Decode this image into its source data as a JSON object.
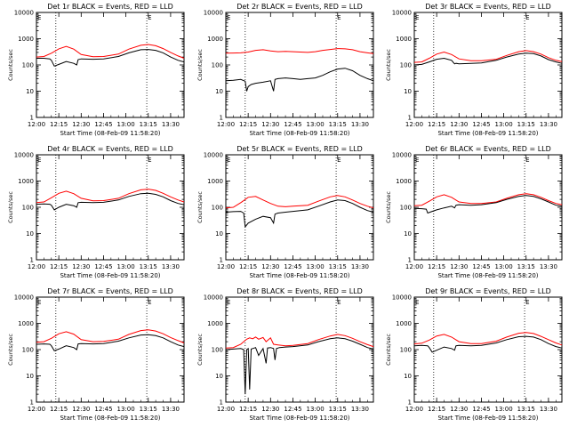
{
  "figure": {
    "xlabel": "Start Time (08-Feb-09 11:58:20)",
    "ylabel": "Counts/sec",
    "series_colors": {
      "Events": "#000000",
      "LLD": "#ff0000"
    },
    "xtick_labels": [
      "12:00",
      "12:15",
      "12:30",
      "12:45",
      "13:00",
      "13:15",
      "13:30"
    ],
    "ytick_labels": [
      "1",
      "10",
      "100",
      "1000",
      "10000"
    ],
    "marker_text": "E"
  },
  "chart_data": [
    {
      "type": "line",
      "title": "Det 1r BLACK = Events, RED = LLD",
      "xlabel": "Start Time (08-Feb-09 11:58:20)",
      "ylabel": "Counts/sec",
      "x_unit": "minutes after 12:00",
      "xlim": [
        "12:00",
        "13:39"
      ],
      "ylim": [
        1,
        10000
      ],
      "yscale": "log",
      "vlines": [
        "12:13",
        "13:14"
      ],
      "series": [
        {
          "color": "#000000",
          "x": [
            0,
            5,
            9,
            10,
            12,
            15,
            20,
            25,
            27,
            28,
            30,
            38,
            45,
            55,
            62,
            70,
            75,
            80,
            85,
            90,
            95,
            99
          ],
          "values": [
            180,
            180,
            170,
            150,
            90,
            105,
            135,
            115,
            100,
            160,
            170,
            165,
            170,
            210,
            290,
            380,
            390,
            360,
            290,
            200,
            150,
            130
          ]
        },
        {
          "color": "#ff0000",
          "x": [
            0,
            5,
            10,
            15,
            20,
            25,
            30,
            38,
            45,
            55,
            62,
            70,
            75,
            80,
            85,
            90,
            95,
            99
          ],
          "values": [
            200,
            210,
            280,
            410,
            510,
            400,
            250,
            205,
            210,
            260,
            400,
            560,
            600,
            540,
            420,
            300,
            220,
            180
          ]
        }
      ]
    },
    {
      "type": "line",
      "title": "Det 2r BLACK = Events, RED = LLD",
      "xlabel": "Start Time (08-Feb-09 11:58:20)",
      "ylabel": "Counts/sec",
      "x_unit": "minutes after 12:00",
      "xlim": [
        "12:00",
        "13:39"
      ],
      "ylim": [
        1,
        10000
      ],
      "yscale": "log",
      "vlines": [
        "12:13",
        "13:14"
      ],
      "series": [
        {
          "color": "#000000",
          "x": [
            0,
            5,
            10,
            13,
            14,
            15,
            17,
            20,
            25,
            30,
            32,
            33,
            35,
            40,
            45,
            50,
            55,
            60,
            65,
            70,
            75,
            80,
            85,
            90,
            95,
            99
          ],
          "values": [
            25,
            26,
            28,
            24,
            10,
            15,
            18,
            20,
            22,
            25,
            10,
            28,
            30,
            32,
            30,
            28,
            30,
            32,
            40,
            55,
            70,
            75,
            60,
            40,
            30,
            25
          ]
        },
        {
          "color": "#ff0000",
          "x": [
            0,
            5,
            10,
            15,
            20,
            25,
            30,
            35,
            40,
            45,
            50,
            55,
            60,
            65,
            70,
            75,
            80,
            85,
            90,
            95,
            99
          ],
          "values": [
            280,
            285,
            290,
            310,
            360,
            380,
            340,
            320,
            330,
            320,
            310,
            300,
            320,
            360,
            390,
            420,
            410,
            380,
            320,
            290,
            270
          ]
        }
      ]
    },
    {
      "type": "line",
      "title": "Det 3r BLACK = Events, RED = LLD",
      "xlabel": "Start Time (08-Feb-09 11:58:20)",
      "ylabel": "Counts/sec",
      "x_unit": "minutes after 12:00",
      "xlim": [
        "12:00",
        "13:39"
      ],
      "ylim": [
        1,
        10000
      ],
      "yscale": "log",
      "vlines": [
        "12:13",
        "13:14"
      ],
      "series": [
        {
          "color": "#000000",
          "x": [
            0,
            5,
            10,
            15,
            20,
            25,
            27,
            28,
            30,
            38,
            45,
            55,
            62,
            70,
            75,
            80,
            85,
            90,
            95,
            99
          ],
          "values": [
            100,
            105,
            130,
            165,
            180,
            150,
            110,
            115,
            110,
            115,
            120,
            150,
            200,
            260,
            280,
            270,
            220,
            160,
            130,
            115
          ]
        },
        {
          "color": "#ff0000",
          "x": [
            0,
            5,
            10,
            15,
            20,
            25,
            30,
            38,
            45,
            55,
            62,
            70,
            75,
            80,
            85,
            90,
            95,
            99
          ],
          "values": [
            125,
            130,
            180,
            260,
            310,
            250,
            170,
            145,
            145,
            165,
            230,
            320,
            350,
            320,
            260,
            190,
            150,
            135
          ]
        }
      ]
    },
    {
      "type": "line",
      "title": "Det 4r BLACK = Events, RED = LLD",
      "xlabel": "Start Time (08-Feb-09 11:58:20)",
      "ylabel": "Counts/sec",
      "x_unit": "minutes after 12:00",
      "xlim": [
        "12:00",
        "13:39"
      ],
      "ylim": [
        1,
        10000
      ],
      "yscale": "log",
      "vlines": [
        "12:13",
        "13:14"
      ],
      "series": [
        {
          "color": "#000000",
          "x": [
            0,
            5,
            9,
            10,
            12,
            15,
            20,
            25,
            27,
            28,
            30,
            38,
            45,
            55,
            62,
            70,
            75,
            80,
            85,
            90,
            95,
            99
          ],
          "values": [
            130,
            135,
            130,
            120,
            80,
            100,
            130,
            115,
            100,
            150,
            155,
            150,
            155,
            190,
            260,
            330,
            340,
            310,
            250,
            180,
            140,
            125
          ]
        },
        {
          "color": "#ff0000",
          "x": [
            0,
            5,
            10,
            15,
            20,
            25,
            30,
            38,
            45,
            55,
            62,
            70,
            75,
            80,
            85,
            90,
            95,
            99
          ],
          "values": [
            150,
            160,
            230,
            340,
            410,
            330,
            220,
            175,
            180,
            220,
            330,
            460,
            490,
            440,
            340,
            250,
            190,
            160
          ]
        }
      ]
    },
    {
      "type": "line",
      "title": "Det 5r BLACK = Events, RED = LLD",
      "xlabel": "Start Time (08-Feb-09 11:58:20)",
      "ylabel": "Counts/sec",
      "x_unit": "minutes after 12:00",
      "xlim": [
        "12:00",
        "13:39"
      ],
      "ylim": [
        1,
        10000
      ],
      "yscale": "log",
      "vlines": [
        "12:13",
        "13:14"
      ],
      "series": [
        {
          "color": "#000000",
          "x": [
            0,
            5,
            10,
            12,
            13,
            15,
            20,
            25,
            30,
            32,
            33,
            35,
            40,
            45,
            55,
            62,
            70,
            75,
            80,
            85,
            90,
            95,
            99
          ],
          "values": [
            65,
            68,
            70,
            60,
            18,
            25,
            35,
            45,
            40,
            25,
            55,
            60,
            65,
            70,
            80,
            110,
            160,
            190,
            180,
            140,
            100,
            75,
            65
          ]
        },
        {
          "color": "#ff0000",
          "x": [
            0,
            5,
            10,
            15,
            20,
            25,
            30,
            35,
            40,
            45,
            55,
            62,
            70,
            75,
            80,
            85,
            90,
            95,
            99
          ],
          "values": [
            95,
            100,
            150,
            240,
            260,
            190,
            140,
            110,
            105,
            110,
            120,
            170,
            250,
            280,
            250,
            190,
            140,
            110,
            95
          ]
        }
      ]
    },
    {
      "type": "line",
      "title": "Det 6r BLACK = Events, RED = LLD",
      "xlabel": "Start Time (08-Feb-09 11:58:20)",
      "ylabel": "Counts/sec",
      "x_unit": "minutes after 12:00",
      "xlim": [
        "12:00",
        "13:39"
      ],
      "ylim": [
        1,
        10000
      ],
      "yscale": "log",
      "vlines": [
        "12:13",
        "13:14"
      ],
      "series": [
        {
          "color": "#000000",
          "x": [
            0,
            5,
            8,
            9,
            12,
            15,
            20,
            25,
            27,
            28,
            30,
            38,
            45,
            55,
            62,
            70,
            75,
            80,
            85,
            90,
            95,
            99
          ],
          "values": [
            90,
            88,
            85,
            60,
            70,
            80,
            95,
            110,
            95,
            120,
            125,
            120,
            125,
            150,
            200,
            260,
            280,
            260,
            210,
            160,
            120,
            110
          ]
        },
        {
          "color": "#ff0000",
          "x": [
            0,
            5,
            10,
            15,
            20,
            25,
            30,
            38,
            45,
            55,
            62,
            70,
            75,
            80,
            85,
            90,
            95,
            99
          ],
          "values": [
            115,
            120,
            170,
            250,
            300,
            240,
            160,
            140,
            140,
            160,
            220,
            300,
            330,
            300,
            240,
            180,
            140,
            125
          ]
        }
      ]
    },
    {
      "type": "line",
      "title": "Det 7r BLACK = Events, RED = LLD",
      "xlabel": "Start Time (08-Feb-09 11:58:20)",
      "ylabel": "Counts/sec",
      "x_unit": "minutes after 12:00",
      "xlim": [
        "12:00",
        "13:39"
      ],
      "ylim": [
        1,
        10000
      ],
      "yscale": "log",
      "vlines": [
        "12:13",
        "13:14"
      ],
      "series": [
        {
          "color": "#000000",
          "x": [
            0,
            5,
            9,
            10,
            12,
            15,
            20,
            25,
            27,
            28,
            30,
            38,
            45,
            55,
            62,
            70,
            75,
            80,
            85,
            90,
            95,
            99
          ],
          "values": [
            160,
            165,
            160,
            140,
            90,
            105,
            140,
            120,
            100,
            165,
            170,
            165,
            170,
            210,
            280,
            360,
            370,
            340,
            280,
            200,
            150,
            130
          ]
        },
        {
          "color": "#ff0000",
          "x": [
            0,
            5,
            10,
            15,
            20,
            25,
            30,
            38,
            45,
            55,
            62,
            70,
            75,
            80,
            85,
            90,
            95,
            99
          ],
          "values": [
            190,
            200,
            270,
            400,
            480,
            390,
            240,
            200,
            205,
            250,
            380,
            530,
            570,
            510,
            400,
            290,
            220,
            180
          ]
        }
      ]
    },
    {
      "type": "line",
      "title": "Det 8r BLACK = Events, RED = LLD",
      "xlabel": "Start Time (08-Feb-09 11:58:20)",
      "ylabel": "Counts/sec",
      "x_unit": "minutes after 12:00",
      "xlim": [
        "12:00",
        "13:39"
      ],
      "ylim": [
        1,
        10000
      ],
      "yscale": "log",
      "vlines": [
        "12:13",
        "13:14"
      ],
      "series": [
        {
          "color": "#000000",
          "x": [
            0,
            5,
            10,
            12,
            13,
            14,
            15,
            16,
            17,
            18,
            20,
            22,
            25,
            27,
            28,
            30,
            32,
            33,
            34,
            36,
            40,
            45,
            55,
            62,
            70,
            75,
            80,
            85,
            90,
            95,
            99
          ],
          "values": [
            100,
            105,
            110,
            100,
            2,
            100,
            110,
            3,
            105,
            110,
            120,
            60,
            110,
            30,
            115,
            120,
            110,
            40,
            110,
            120,
            125,
            130,
            150,
            200,
            260,
            280,
            260,
            210,
            160,
            120,
            105
          ]
        },
        {
          "color": "#ff0000",
          "x": [
            0,
            5,
            10,
            12,
            14,
            16,
            18,
            20,
            22,
            25,
            27,
            30,
            32,
            35,
            40,
            45,
            55,
            62,
            70,
            75,
            80,
            85,
            90,
            95,
            99
          ],
          "values": [
            115,
            120,
            160,
            200,
            250,
            280,
            260,
            300,
            250,
            290,
            200,
            280,
            160,
            150,
            140,
            145,
            170,
            240,
            330,
            380,
            340,
            270,
            200,
            155,
            130
          ]
        }
      ]
    },
    {
      "type": "line",
      "title": "Det 9r BLACK = Events, RED = LLD",
      "xlabel": "Start Time (08-Feb-09 11:58:20)",
      "ylabel": "Counts/sec",
      "x_unit": "minutes after 12:00",
      "xlim": [
        "12:00",
        "13:39"
      ],
      "ylim": [
        1,
        10000
      ],
      "yscale": "log",
      "vlines": [
        "12:13",
        "13:14"
      ],
      "series": [
        {
          "color": "#000000",
          "x": [
            0,
            5,
            9,
            10,
            12,
            15,
            20,
            25,
            27,
            28,
            30,
            38,
            45,
            55,
            62,
            70,
            75,
            80,
            85,
            90,
            95,
            99
          ],
          "values": [
            140,
            145,
            140,
            120,
            80,
            95,
            125,
            110,
            95,
            140,
            145,
            140,
            145,
            180,
            240,
            310,
            320,
            300,
            240,
            170,
            130,
            115
          ]
        },
        {
          "color": "#ff0000",
          "x": [
            0,
            5,
            10,
            15,
            20,
            25,
            30,
            38,
            45,
            55,
            62,
            70,
            75,
            80,
            85,
            90,
            95,
            99
          ],
          "values": [
            165,
            175,
            230,
            330,
            380,
            300,
            200,
            170,
            170,
            210,
            300,
            420,
            450,
            410,
            320,
            240,
            180,
            150
          ]
        }
      ]
    }
  ]
}
